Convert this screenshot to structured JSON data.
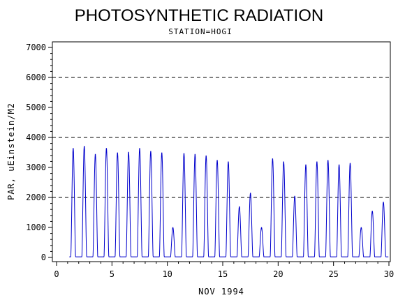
{
  "chart_data": {
    "type": "line",
    "title": "PHOTOSYNTHETIC RADIATION",
    "subtitle": "STATION=HOGI",
    "xlabel": "NOV 1994",
    "ylabel": "PAR, uEinstein/M2",
    "xlim": [
      0,
      30
    ],
    "ylim": [
      0,
      7000
    ],
    "x_ticks": [
      0,
      5,
      10,
      15,
      20,
      25,
      30
    ],
    "y_ticks": [
      0,
      1000,
      2000,
      3000,
      4000,
      5000,
      6000,
      7000
    ],
    "reference_lines": [
      2000,
      4000,
      6000
    ],
    "grid": false,
    "series": [
      {
        "color": "#0000cc",
        "daily_peaks": [
          {
            "x": 1.5,
            "y": 3650
          },
          {
            "x": 2.5,
            "y": 3720
          },
          {
            "x": 3.5,
            "y": 3450
          },
          {
            "x": 4.5,
            "y": 3650
          },
          {
            "x": 5.5,
            "y": 3500
          },
          {
            "x": 6.5,
            "y": 3520
          },
          {
            "x": 7.5,
            "y": 3650
          },
          {
            "x": 8.5,
            "y": 3550
          },
          {
            "x": 9.5,
            "y": 3500
          },
          {
            "x": 10.5,
            "y": 1000
          },
          {
            "x": 11.5,
            "y": 3480
          },
          {
            "x": 12.5,
            "y": 3450
          },
          {
            "x": 13.5,
            "y": 3400
          },
          {
            "x": 14.5,
            "y": 3250
          },
          {
            "x": 15.5,
            "y": 3200
          },
          {
            "x": 16.5,
            "y": 1700
          },
          {
            "x": 17.5,
            "y": 2150
          },
          {
            "x": 18.5,
            "y": 1000
          },
          {
            "x": 19.5,
            "y": 3300
          },
          {
            "x": 20.5,
            "y": 3200
          },
          {
            "x": 21.5,
            "y": 2050
          },
          {
            "x": 22.5,
            "y": 3100
          },
          {
            "x": 23.5,
            "y": 3200
          },
          {
            "x": 24.5,
            "y": 3250
          },
          {
            "x": 25.5,
            "y": 3100
          },
          {
            "x": 26.5,
            "y": 3150
          },
          {
            "x": 27.5,
            "y": 1000
          },
          {
            "x": 28.5,
            "y": 1550
          },
          {
            "x": 29.5,
            "y": 1850
          }
        ]
      }
    ]
  }
}
